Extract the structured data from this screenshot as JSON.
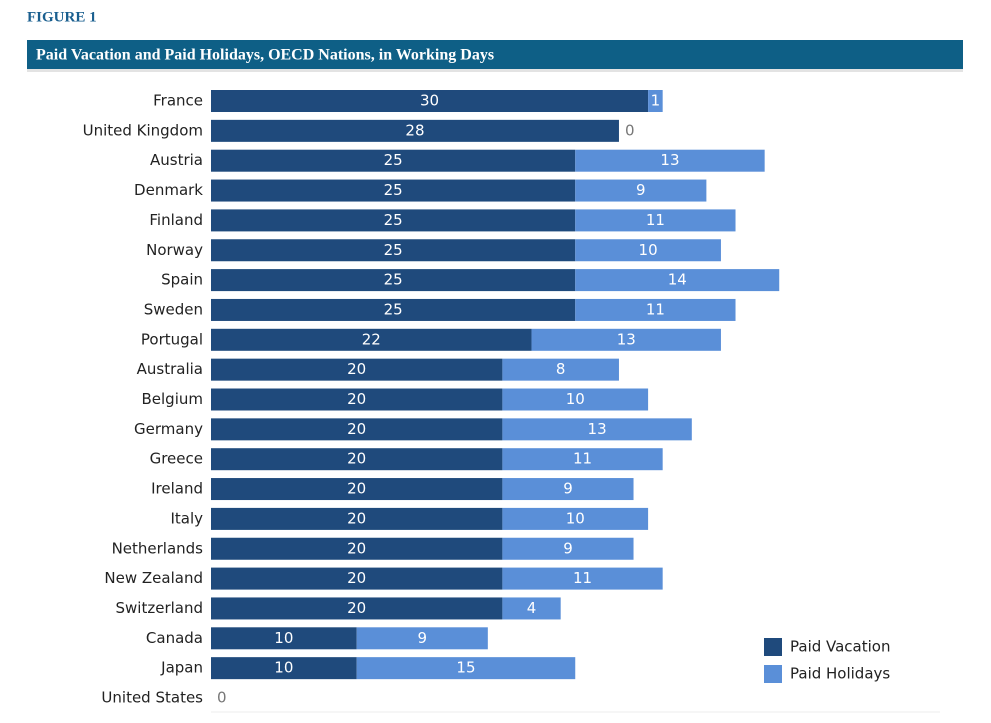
{
  "figure_label": "FIGURE 1",
  "chart_data": {
    "type": "stacked-bar-horizontal",
    "title": "Paid Vacation and Paid Holidays, OECD Nations, in Working Days",
    "categories": [
      "France",
      "United Kingdom",
      "Austria",
      "Denmark",
      "Finland",
      "Norway",
      "Spain",
      "Sweden",
      "Portugal",
      "Australia",
      "Belgium",
      "Germany",
      "Greece",
      "Ireland",
      "Italy",
      "Netherlands",
      "New Zealand",
      "Switzerland",
      "Canada",
      "Japan",
      "United States"
    ],
    "series": [
      {
        "name": "Paid Vacation",
        "color": "#1f4a7c",
        "values": [
          30,
          28,
          25,
          25,
          25,
          25,
          25,
          25,
          22,
          20,
          20,
          20,
          20,
          20,
          20,
          20,
          20,
          20,
          10,
          10,
          0
        ]
      },
      {
        "name": "Paid Holidays",
        "color": "#5a8fd8",
        "values": [
          1,
          0,
          13,
          9,
          11,
          10,
          14,
          11,
          13,
          8,
          10,
          13,
          11,
          9,
          10,
          9,
          11,
          4,
          9,
          15,
          0
        ]
      }
    ],
    "legend": "bottom-right"
  }
}
